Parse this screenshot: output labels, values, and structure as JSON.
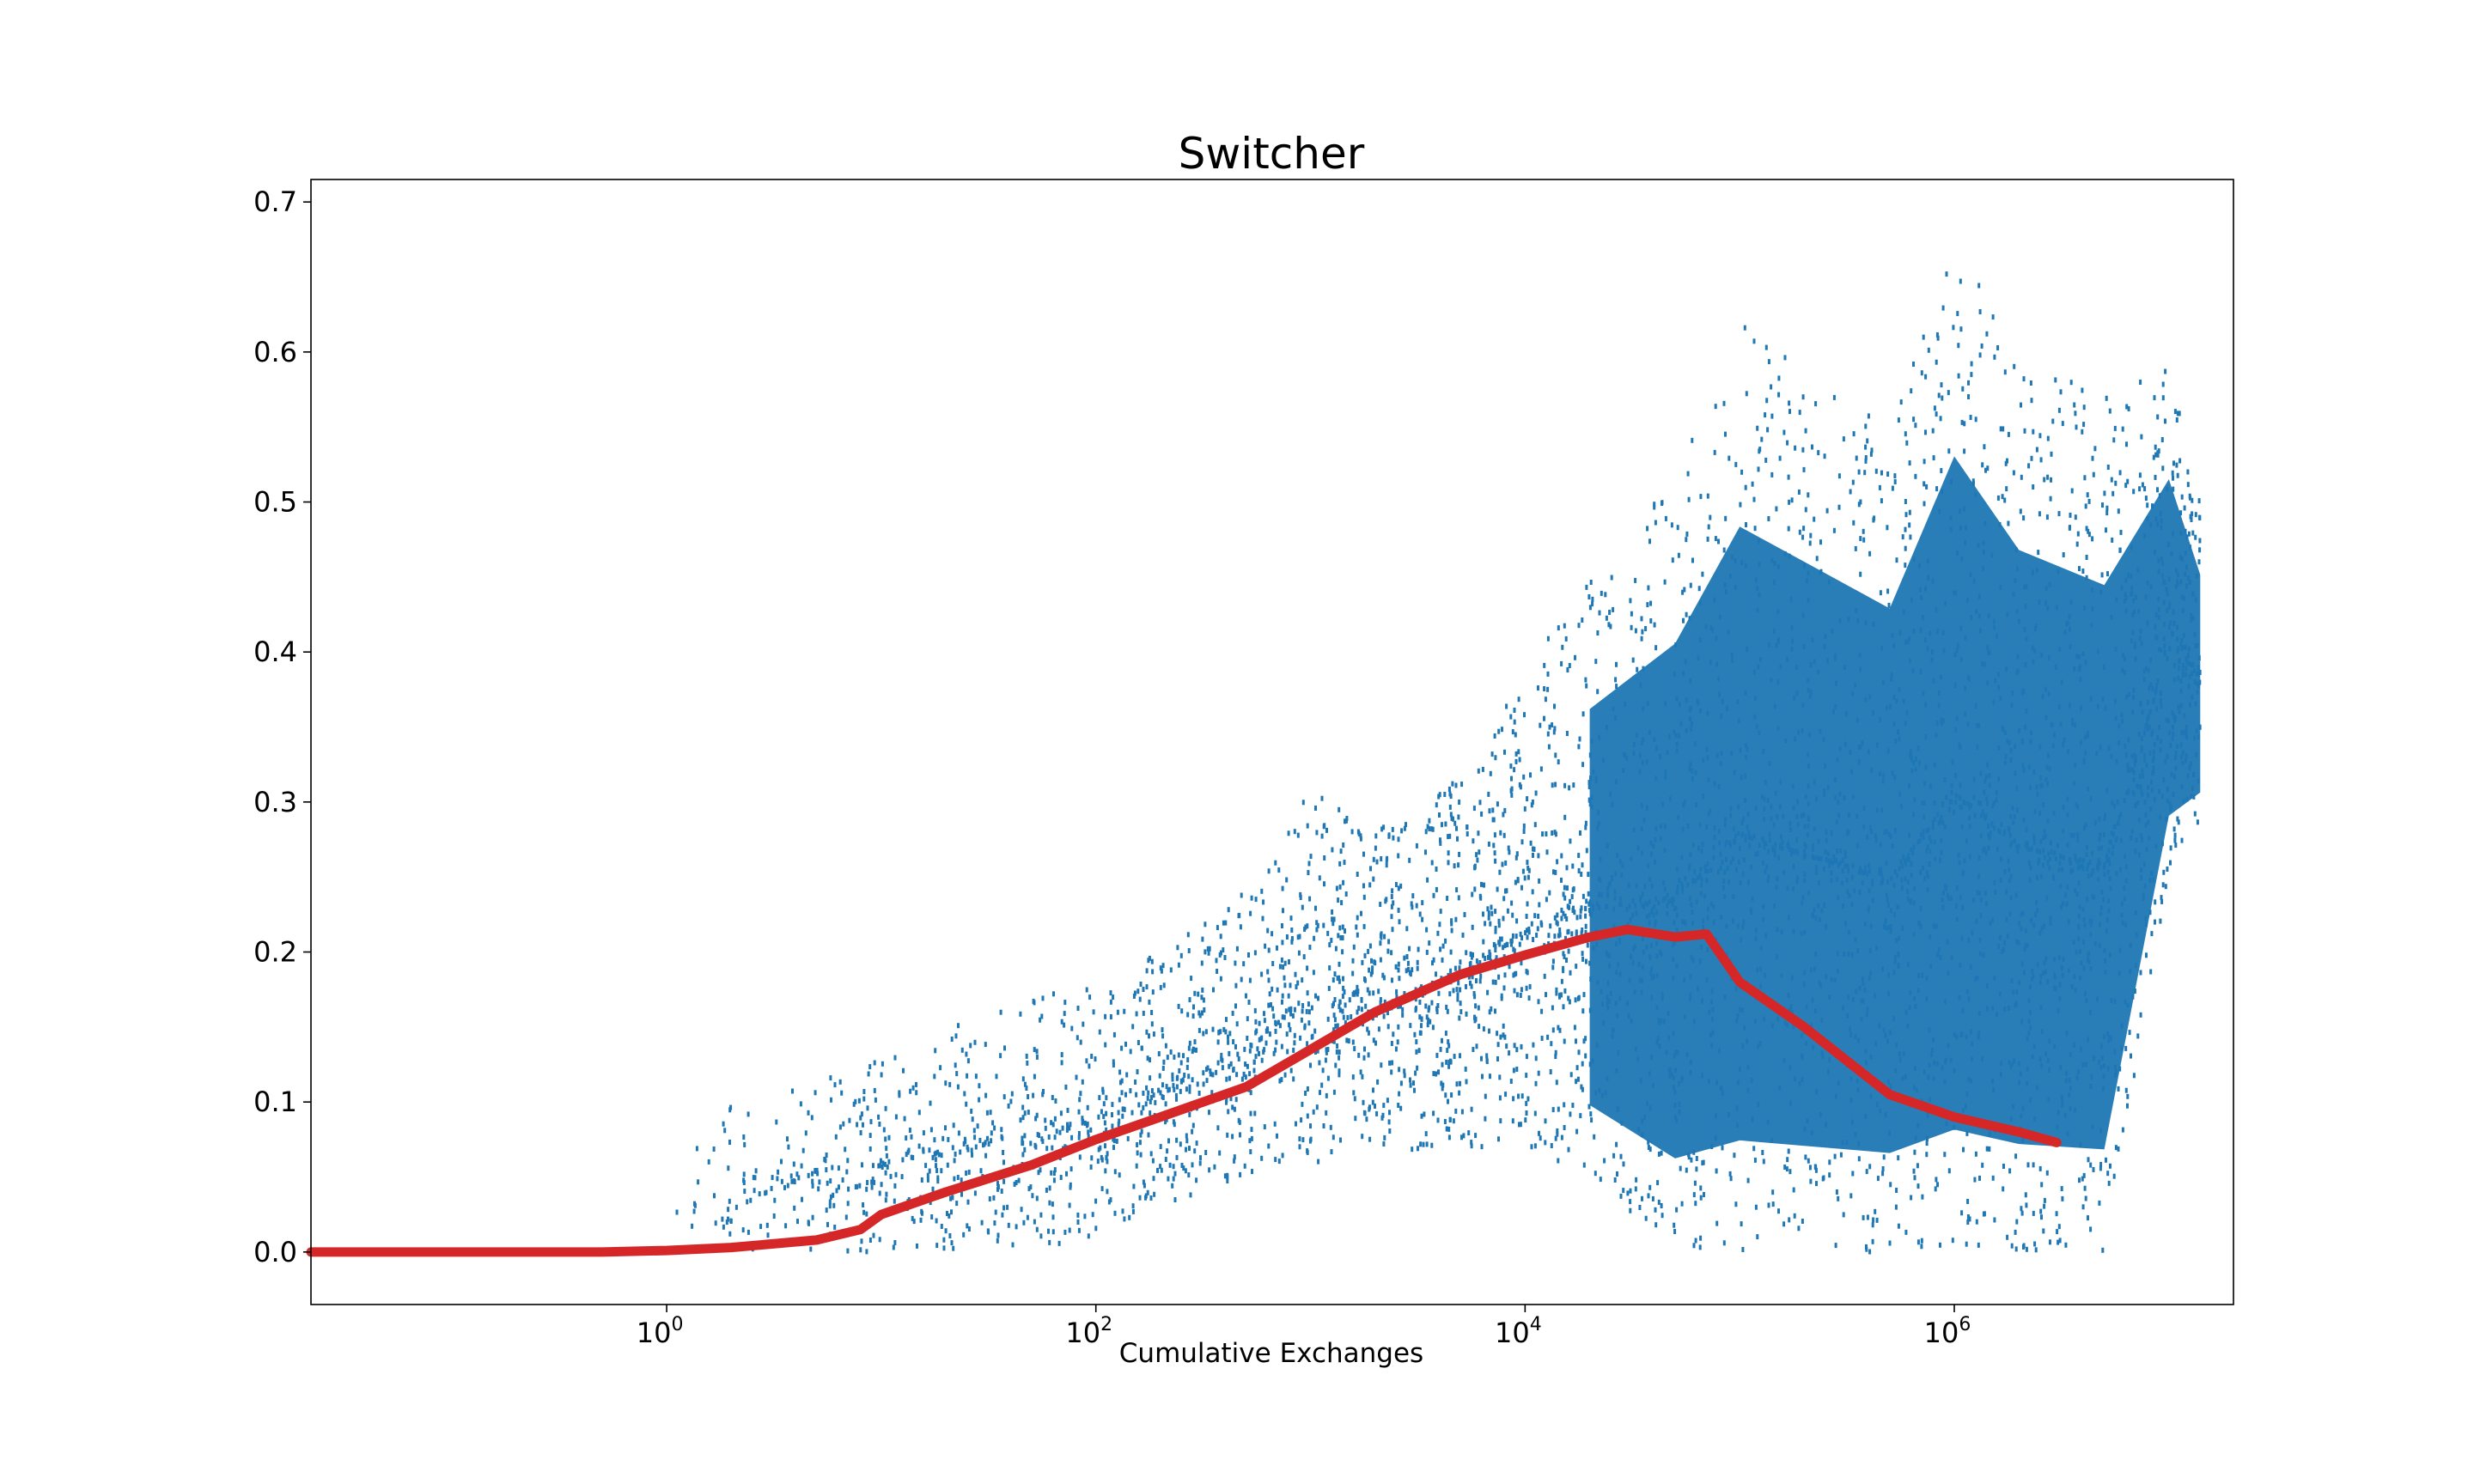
{
  "chart_data": {
    "type": "scatter",
    "title": "Switcher",
    "xlabel": "Cumulative Exchanges",
    "ylabel": "",
    "xscale": "log",
    "xlim": [
      0.022,
      20000000
    ],
    "ylim": [
      -0.035,
      0.715
    ],
    "grid": false,
    "legend": "none",
    "x_ticks": [
      {
        "value": 1,
        "base": "10",
        "exp": "0"
      },
      {
        "value": 100,
        "base": "10",
        "exp": "2"
      },
      {
        "value": 10000,
        "base": "10",
        "exp": "4"
      },
      {
        "value": 1000000,
        "base": "10",
        "exp": "6"
      }
    ],
    "y_ticks": [
      {
        "value": 0.0,
        "label": "0.0"
      },
      {
        "value": 0.1,
        "label": "0.1"
      },
      {
        "value": 0.2,
        "label": "0.2"
      },
      {
        "value": 0.3,
        "label": "0.3"
      },
      {
        "value": 0.4,
        "label": "0.4"
      },
      {
        "value": 0.5,
        "label": "0.5"
      },
      {
        "value": 0.6,
        "label": "0.6"
      },
      {
        "value": 0.7,
        "label": "0.7"
      }
    ],
    "series": [
      {
        "kind": "scatter-band",
        "color": "#1f77b4",
        "x": [
          1,
          2,
          5,
          10,
          20,
          50,
          100,
          200,
          500,
          1000,
          2000,
          5000,
          10000,
          20000,
          50000,
          100000,
          200000,
          500000,
          1000000,
          2000000,
          5000000,
          10000000,
          14000000
        ],
        "y_min": [
          0.0,
          0.0,
          0.0,
          0.0,
          0.0,
          0.0,
          0.01,
          0.03,
          0.05,
          0.06,
          0.06,
          0.07,
          0.07,
          0.05,
          0.0,
          0.0,
          0.0,
          0.0,
          0.0,
          0.0,
          0.0,
          0.25,
          0.28
        ],
        "y_max": [
          0.05,
          0.1,
          0.12,
          0.13,
          0.15,
          0.17,
          0.18,
          0.2,
          0.24,
          0.31,
          0.28,
          0.32,
          0.39,
          0.45,
          0.52,
          0.62,
          0.59,
          0.55,
          0.68,
          0.6,
          0.57,
          0.59,
          0.5
        ]
      },
      {
        "kind": "line",
        "color": "#d62728",
        "x": [
          0.022,
          0.1,
          0.5,
          1,
          2,
          5,
          8,
          10,
          20,
          50,
          100,
          200,
          500,
          1000,
          2000,
          5000,
          10000,
          20000,
          30000,
          50000,
          70000,
          100000,
          200000,
          300000,
          500000,
          1000000,
          2000000,
          3000000
        ],
        "y": [
          0.0,
          0.0,
          0.0,
          0.001,
          0.003,
          0.008,
          0.015,
          0.025,
          0.04,
          0.058,
          0.075,
          0.09,
          0.11,
          0.135,
          0.16,
          0.185,
          0.198,
          0.21,
          0.215,
          0.21,
          0.212,
          0.18,
          0.15,
          0.13,
          0.105,
          0.09,
          0.08,
          0.073
        ]
      }
    ]
  }
}
